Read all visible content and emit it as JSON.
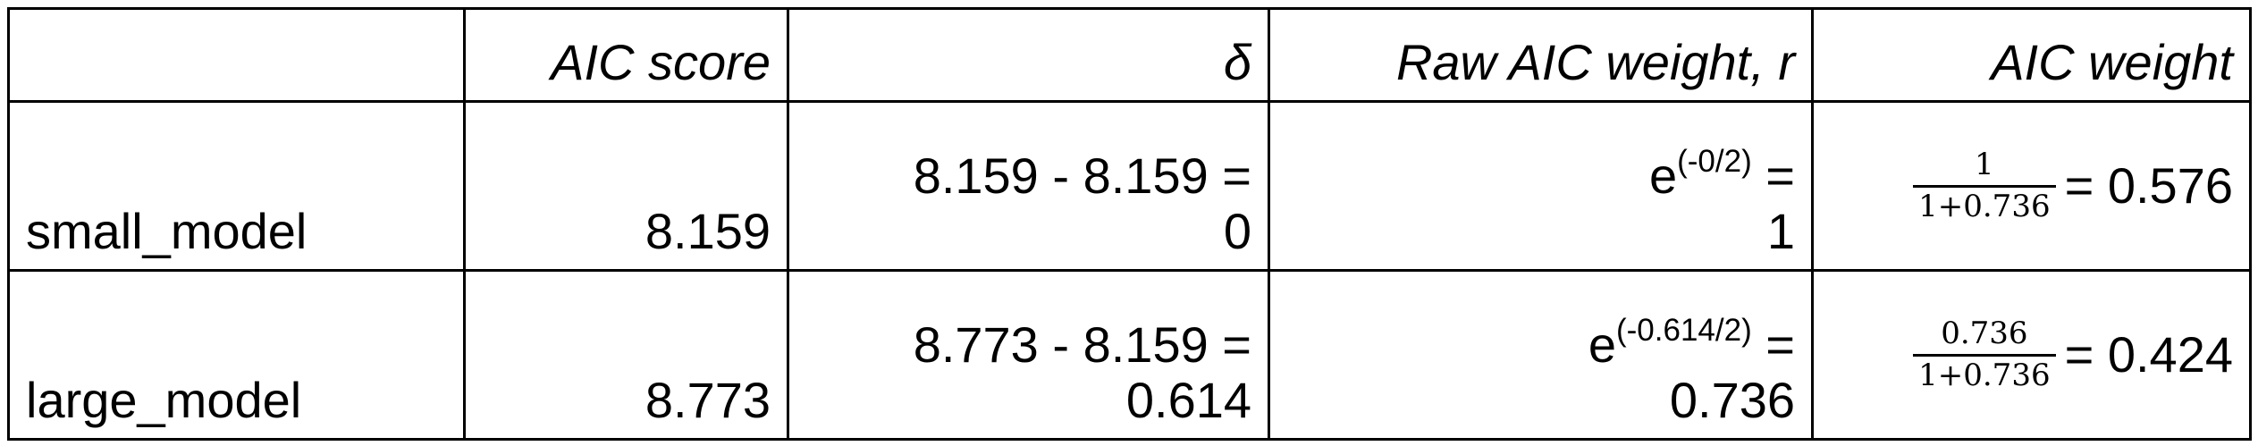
{
  "table": {
    "headers": [
      "",
      "AIC score",
      "δ",
      "Raw AIC weight, r",
      "AIC weight"
    ],
    "rows": [
      {
        "model": "small_model",
        "aic_score": "8.159",
        "delta_expr": "8.159 - 8.159 =",
        "delta_value": "0",
        "raw_weight_base": "e",
        "raw_weight_exponent": "(-0/2)",
        "raw_weight_eq": " =",
        "raw_weight_value": "1",
        "weight_numerator": "1",
        "weight_denominator": "1+0.736",
        "weight_result": "= 0.576"
      },
      {
        "model": "large_model",
        "aic_score": "8.773",
        "delta_expr": "8.773 - 8.159 =",
        "delta_value": "0.614",
        "raw_weight_base": "e",
        "raw_weight_exponent": "(-0.614/2)",
        "raw_weight_eq": " =",
        "raw_weight_value": "0.736",
        "weight_numerator": "0.736",
        "weight_denominator": "1+0.736",
        "weight_result": "= 0.424"
      }
    ]
  }
}
